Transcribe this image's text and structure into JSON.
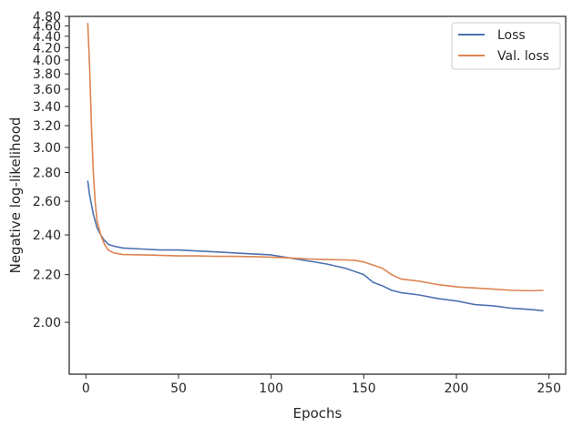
{
  "chart_data": {
    "type": "line",
    "xlabel": "Epochs",
    "ylabel": "Negative log-likelihood",
    "xlim": [
      -9,
      259
    ],
    "ylim": [
      1.82,
      4.8
    ],
    "yscale": "reciprocal",
    "grid": false,
    "legend_position": "top-right",
    "x_ticks": [
      0,
      50,
      100,
      150,
      200,
      250
    ],
    "x_tick_labels": [
      "0",
      "50",
      "100",
      "150",
      "200",
      "250"
    ],
    "y_ticks": [
      2.0,
      2.2,
      2.4,
      2.6,
      2.8,
      3.0,
      3.2,
      3.4,
      3.6,
      3.8,
      4.0,
      4.2,
      4.4,
      4.6,
      4.8
    ],
    "y_tick_labels": [
      "2.00",
      "2.20",
      "2.40",
      "2.60",
      "2.80",
      "3.00",
      "3.20",
      "3.40",
      "3.60",
      "3.80",
      "4.00",
      "4.20",
      "4.40",
      "4.60",
      "4.80"
    ],
    "series": [
      {
        "name": "Loss",
        "color": "#4c72b0",
        "x": [
          1,
          2,
          4,
          6,
          8,
          10,
          12,
          15,
          20,
          30,
          40,
          50,
          60,
          70,
          80,
          90,
          100,
          110,
          120,
          130,
          140,
          150,
          155,
          160,
          165,
          170,
          180,
          190,
          200,
          210,
          220,
          230,
          240,
          247
        ],
        "y": [
          2.74,
          2.64,
          2.52,
          2.44,
          2.4,
          2.37,
          2.35,
          2.34,
          2.33,
          2.325,
          2.32,
          2.32,
          2.315,
          2.31,
          2.305,
          2.3,
          2.295,
          2.28,
          2.265,
          2.25,
          2.23,
          2.2,
          2.165,
          2.15,
          2.13,
          2.12,
          2.11,
          2.095,
          2.085,
          2.07,
          2.065,
          2.055,
          2.05,
          2.045
        ]
      },
      {
        "name": "Val. loss",
        "color": "#dd8452",
        "x": [
          1,
          2,
          3,
          4,
          5,
          6,
          8,
          10,
          12,
          15,
          20,
          30,
          40,
          50,
          60,
          70,
          80,
          90,
          100,
          110,
          120,
          130,
          140,
          145,
          150,
          155,
          160,
          165,
          170,
          180,
          190,
          200,
          210,
          220,
          230,
          240,
          247
        ],
        "y": [
          4.66,
          3.9,
          3.2,
          2.8,
          2.6,
          2.48,
          2.4,
          2.35,
          2.32,
          2.305,
          2.297,
          2.295,
          2.293,
          2.29,
          2.29,
          2.288,
          2.288,
          2.286,
          2.284,
          2.28,
          2.275,
          2.272,
          2.27,
          2.268,
          2.26,
          2.245,
          2.23,
          2.2,
          2.18,
          2.17,
          2.155,
          2.145,
          2.14,
          2.135,
          2.13,
          2.128,
          2.13
        ]
      }
    ]
  }
}
